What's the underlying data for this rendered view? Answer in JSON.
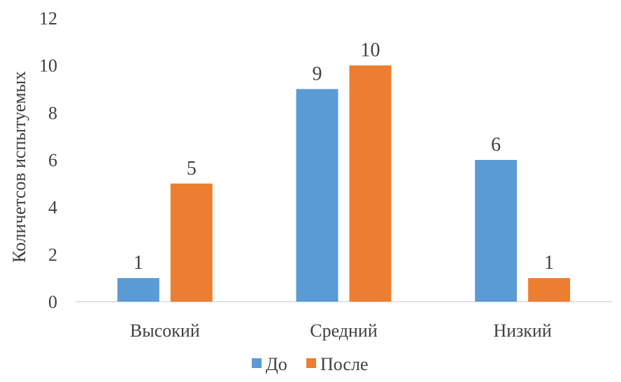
{
  "chart_data": {
    "type": "bar",
    "categories": [
      "Высокий",
      "Средний",
      "Низкий"
    ],
    "series": [
      {
        "name": "До",
        "values": [
          1,
          9,
          6
        ],
        "color": "#5B9BD5"
      },
      {
        "name": "После",
        "values": [
          5,
          10,
          1
        ],
        "color": "#ED7D31"
      }
    ],
    "title": "",
    "xlabel": "",
    "ylabel": "Количетсов испытуемых",
    "ylim": [
      0,
      12
    ],
    "yticks": [
      0,
      2,
      4,
      6,
      8,
      10,
      12
    ],
    "grid": false,
    "legend_position": "bottom"
  }
}
